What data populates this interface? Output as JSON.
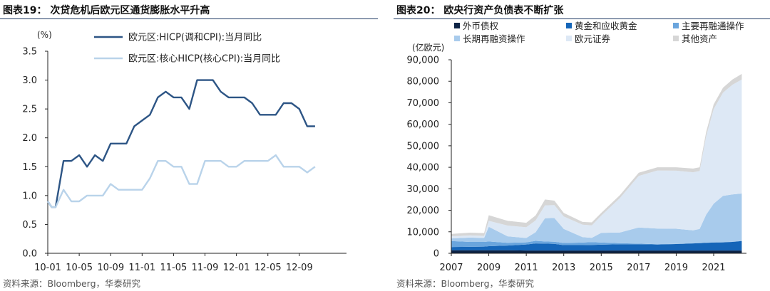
{
  "left": {
    "title": "图表19：  次贷危机后欧元区通货膨胀水平升高",
    "source": "资料来源：Bloomberg，华泰研究",
    "chart_data": {
      "type": "line",
      "yunit": "(%)",
      "ylim": [
        0,
        3.5
      ],
      "yticks": [
        "0.0",
        "0.5",
        "1.0",
        "1.5",
        "2.0",
        "2.5",
        "3.0",
        "3.5"
      ],
      "xticks": [
        "10-01",
        "10-05",
        "10-09",
        "11-01",
        "11-05",
        "11-09",
        "12-01",
        "12-05",
        "12-09"
      ],
      "xrange_months": 38,
      "grid": false,
      "legend_position": "top-left",
      "series": [
        {
          "name": "欧元区:HICP(调和CPI):当月同比",
          "color": "#2d5585",
          "points": [
            [
              0,
              0.9
            ],
            [
              0.5,
              0.8
            ],
            [
              1,
              0.8
            ],
            [
              2,
              1.6
            ],
            [
              3,
              1.6
            ],
            [
              4,
              1.7
            ],
            [
              5,
              1.5
            ],
            [
              6,
              1.7
            ],
            [
              7,
              1.6
            ],
            [
              8,
              1.9
            ],
            [
              9,
              1.9
            ],
            [
              10,
              1.9
            ],
            [
              11,
              2.2
            ],
            [
              12,
              2.3
            ],
            [
              13,
              2.4
            ],
            [
              14,
              2.7
            ],
            [
              15,
              2.8
            ],
            [
              16,
              2.7
            ],
            [
              17,
              2.7
            ],
            [
              18,
              2.5
            ],
            [
              19,
              3.0
            ],
            [
              20,
              3.0
            ],
            [
              21,
              3.0
            ],
            [
              22,
              2.8
            ],
            [
              23,
              2.7
            ],
            [
              24,
              2.7
            ],
            [
              25,
              2.7
            ],
            [
              26,
              2.6
            ],
            [
              27,
              2.4
            ],
            [
              28,
              2.4
            ],
            [
              29,
              2.4
            ],
            [
              30,
              2.6
            ],
            [
              31,
              2.6
            ],
            [
              32,
              2.5
            ],
            [
              33,
              2.2
            ],
            [
              34,
              2.2
            ]
          ]
        },
        {
          "name": "欧元区:核心HICP(核心CPI):当月同比",
          "color": "#b9d3ea",
          "points": [
            [
              0,
              0.9
            ],
            [
              0.5,
              0.8
            ],
            [
              1,
              0.8
            ],
            [
              2,
              1.1
            ],
            [
              3,
              0.9
            ],
            [
              4,
              0.9
            ],
            [
              5,
              1.0
            ],
            [
              6,
              1.0
            ],
            [
              7,
              1.0
            ],
            [
              8,
              1.2
            ],
            [
              9,
              1.1
            ],
            [
              10,
              1.1
            ],
            [
              11,
              1.1
            ],
            [
              12,
              1.1
            ],
            [
              13,
              1.3
            ],
            [
              14,
              1.6
            ],
            [
              15,
              1.6
            ],
            [
              16,
              1.5
            ],
            [
              17,
              1.5
            ],
            [
              18,
              1.2
            ],
            [
              19,
              1.2
            ],
            [
              20,
              1.6
            ],
            [
              21,
              1.6
            ],
            [
              22,
              1.6
            ],
            [
              23,
              1.5
            ],
            [
              24,
              1.5
            ],
            [
              25,
              1.6
            ],
            [
              26,
              1.6
            ],
            [
              27,
              1.6
            ],
            [
              28,
              1.6
            ],
            [
              29,
              1.7
            ],
            [
              30,
              1.5
            ],
            [
              31,
              1.5
            ],
            [
              32,
              1.5
            ],
            [
              33,
              1.4
            ],
            [
              34,
              1.5
            ]
          ]
        }
      ]
    }
  },
  "right": {
    "title": "图表20：  欧央行资产负债表不断扩张",
    "source": "资料来源：Bloomberg，华泰研究",
    "chart_data": {
      "type": "area",
      "stacked": true,
      "yunit": "(亿欧元)",
      "ylim": [
        0,
        90000
      ],
      "yticks": [
        "0",
        "10,000",
        "20,000",
        "30,000",
        "40,000",
        "50,000",
        "60,000",
        "70,000",
        "80,000",
        "90,000"
      ],
      "xlim": [
        2007,
        2022.75
      ],
      "xticks": [
        "2007",
        "2009",
        "2011",
        "2013",
        "2015",
        "2017",
        "2019",
        "2021"
      ],
      "grid": false,
      "legend_position": "top",
      "x": [
        2007.0,
        2008.0,
        2008.75,
        2009.0,
        2010.0,
        2011.0,
        2011.5,
        2012.0,
        2012.5,
        2013.0,
        2014.0,
        2014.5,
        2015.0,
        2016.0,
        2017.0,
        2018.0,
        2019.0,
        2019.9,
        2020.25,
        2020.6,
        2021.0,
        2021.5,
        2022.0,
        2022.5
      ],
      "series": [
        {
          "name": "外币债权",
          "color": "#0d2345",
          "values": [
            1400,
            1400,
            1400,
            1400,
            1400,
            1300,
            1300,
            1300,
            1300,
            1300,
            1300,
            1300,
            1300,
            1300,
            1300,
            1300,
            1300,
            1300,
            1300,
            1300,
            1300,
            1300,
            1300,
            1300
          ]
        },
        {
          "name": "黄金和应收黄金",
          "color": "#1565b8",
          "values": [
            1500,
            1600,
            1700,
            1900,
            2200,
            2800,
            3300,
            3200,
            3100,
            2500,
            2500,
            2600,
            2700,
            2900,
            2900,
            2800,
            3000,
            3300,
            3400,
            3600,
            3700,
            3800,
            4000,
            4400
          ]
        },
        {
          "name": "主要再融通操作",
          "color": "#6aa5dd",
          "values": [
            2800,
            2300,
            2200,
            2200,
            1300,
            1000,
            1200,
            1000,
            1000,
            1000,
            1200,
            1300,
            1000,
            500,
            300,
            100,
            100,
            100,
            100,
            100,
            100,
            100,
            100,
            100
          ]
        },
        {
          "name": "长期再融资操作",
          "color": "#a8cbec",
          "values": [
            1200,
            2000,
            1800,
            6800,
            3000,
            2000,
            4000,
            10800,
            11000,
            6500,
            2500,
            2000,
            4500,
            5000,
            7500,
            7300,
            7000,
            6000,
            6500,
            13000,
            18000,
            21500,
            22000,
            22000
          ]
        },
        {
          "name": "欧元证券",
          "color": "#dde8f5",
          "values": [
            1000,
            1000,
            1000,
            2800,
            5000,
            5000,
            5500,
            6000,
            6000,
            5800,
            5800,
            5800,
            8000,
            16000,
            24000,
            27000,
            27000,
            27000,
            27000,
            36500,
            44000,
            48000,
            51000,
            53000
          ]
        },
        {
          "name": "其他资产",
          "color": "#d6d6d6",
          "values": [
            1100,
            1300,
            1300,
            2600,
            2200,
            2100,
            2300,
            2700,
            2100,
            1700,
            1300,
            1400,
            1300,
            1400,
            1500,
            1500,
            1600,
            1700,
            1700,
            2000,
            2200,
            2300,
            2400,
            2600
          ]
        }
      ]
    }
  }
}
